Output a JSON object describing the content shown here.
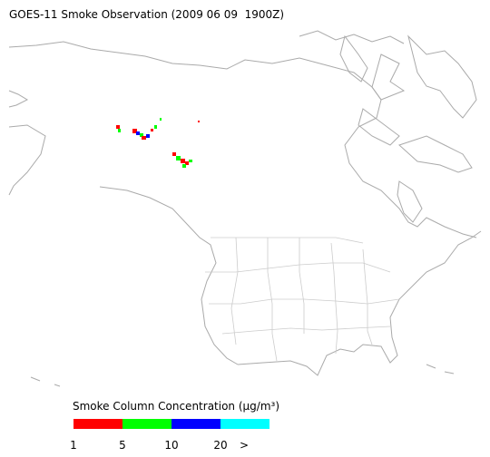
{
  "title": "GOES-11 Smoke Observation (2009 06 09  1900Z)",
  "legend": {
    "title": "Smoke Column Concentration (μg/m³)",
    "colors": [
      "#ff0000",
      "#00ff00",
      "#0000ff",
      "#00ffff"
    ],
    "labels": [
      "1",
      "5",
      "10",
      "20",
      ">"
    ]
  }
}
